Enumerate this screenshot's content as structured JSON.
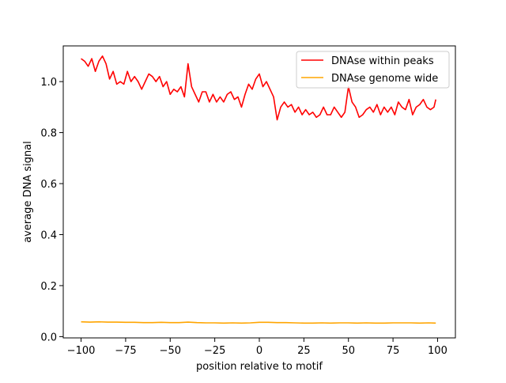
{
  "chart_data": {
    "type": "line",
    "title": "",
    "xlabel": "position relative to motif",
    "ylabel": "average DNA signal",
    "xlim": [
      -110,
      110
    ],
    "ylim": [
      -0.005,
      1.14
    ],
    "xticks": [
      -100,
      -75,
      -50,
      -25,
      0,
      25,
      50,
      75,
      100
    ],
    "xtick_labels": [
      "−100",
      "−75",
      "−50",
      "−25",
      "0",
      "25",
      "50",
      "75",
      "100"
    ],
    "yticks": [
      0.0,
      0.2,
      0.4,
      0.6,
      0.8,
      1.0
    ],
    "ytick_labels": [
      "0.0",
      "0.2",
      "0.4",
      "0.6",
      "0.8",
      "1.0"
    ],
    "grid": false,
    "legend_position": "top-right",
    "series": [
      {
        "name": "DNAse within peaks",
        "color": "#ff0000",
        "x": [
          -100,
          -98,
          -96,
          -94,
          -92,
          -90,
          -88,
          -86,
          -84,
          -82,
          -80,
          -78,
          -76,
          -74,
          -72,
          -70,
          -68,
          -66,
          -64,
          -62,
          -60,
          -58,
          -56,
          -54,
          -52,
          -50,
          -48,
          -46,
          -44,
          -42,
          -40,
          -38,
          -36,
          -34,
          -32,
          -30,
          -28,
          -26,
          -24,
          -22,
          -20,
          -18,
          -16,
          -14,
          -12,
          -10,
          -8,
          -6,
          -4,
          -2,
          0,
          2,
          4,
          6,
          8,
          10,
          12,
          14,
          16,
          18,
          20,
          22,
          24,
          26,
          28,
          30,
          32,
          34,
          36,
          38,
          40,
          42,
          44,
          46,
          48,
          50,
          52,
          54,
          56,
          58,
          60,
          62,
          64,
          66,
          68,
          70,
          72,
          74,
          76,
          78,
          80,
          82,
          84,
          86,
          88,
          90,
          92,
          94,
          96,
          98,
          99
        ],
        "y": [
          1.09,
          1.08,
          1.06,
          1.09,
          1.04,
          1.08,
          1.1,
          1.07,
          1.01,
          1.04,
          0.99,
          1.0,
          0.99,
          1.04,
          1.0,
          1.02,
          1.0,
          0.97,
          1.0,
          1.03,
          1.02,
          1.0,
          1.02,
          0.98,
          1.0,
          0.95,
          0.97,
          0.96,
          0.98,
          0.94,
          1.07,
          0.98,
          0.95,
          0.92,
          0.96,
          0.96,
          0.92,
          0.95,
          0.92,
          0.94,
          0.92,
          0.95,
          0.96,
          0.93,
          0.94,
          0.9,
          0.95,
          0.99,
          0.97,
          1.01,
          1.03,
          0.98,
          1.0,
          0.97,
          0.94,
          0.85,
          0.9,
          0.92,
          0.9,
          0.91,
          0.88,
          0.9,
          0.87,
          0.89,
          0.87,
          0.88,
          0.86,
          0.87,
          0.9,
          0.87,
          0.87,
          0.9,
          0.88,
          0.86,
          0.88,
          0.98,
          0.92,
          0.9,
          0.86,
          0.87,
          0.89,
          0.9,
          0.88,
          0.91,
          0.87,
          0.9,
          0.88,
          0.9,
          0.87,
          0.92,
          0.9,
          0.89,
          0.93,
          0.87,
          0.9,
          0.91,
          0.93,
          0.9,
          0.89,
          0.9,
          0.93
        ]
      },
      {
        "name": "DNAse genome wide",
        "color": "#ffa500",
        "x": [
          -100,
          -95,
          -90,
          -85,
          -80,
          -75,
          -70,
          -65,
          -60,
          -55,
          -50,
          -45,
          -40,
          -35,
          -30,
          -25,
          -20,
          -15,
          -10,
          -5,
          0,
          5,
          10,
          15,
          20,
          25,
          30,
          35,
          40,
          45,
          50,
          55,
          60,
          65,
          70,
          75,
          80,
          85,
          90,
          95,
          99
        ],
        "y": [
          0.058,
          0.057,
          0.058,
          0.057,
          0.057,
          0.056,
          0.056,
          0.055,
          0.055,
          0.056,
          0.055,
          0.055,
          0.057,
          0.055,
          0.054,
          0.054,
          0.053,
          0.054,
          0.053,
          0.054,
          0.056,
          0.056,
          0.055,
          0.055,
          0.054,
          0.053,
          0.053,
          0.054,
          0.053,
          0.054,
          0.054,
          0.053,
          0.054,
          0.053,
          0.053,
          0.054,
          0.054,
          0.054,
          0.053,
          0.054,
          0.053
        ]
      }
    ]
  }
}
